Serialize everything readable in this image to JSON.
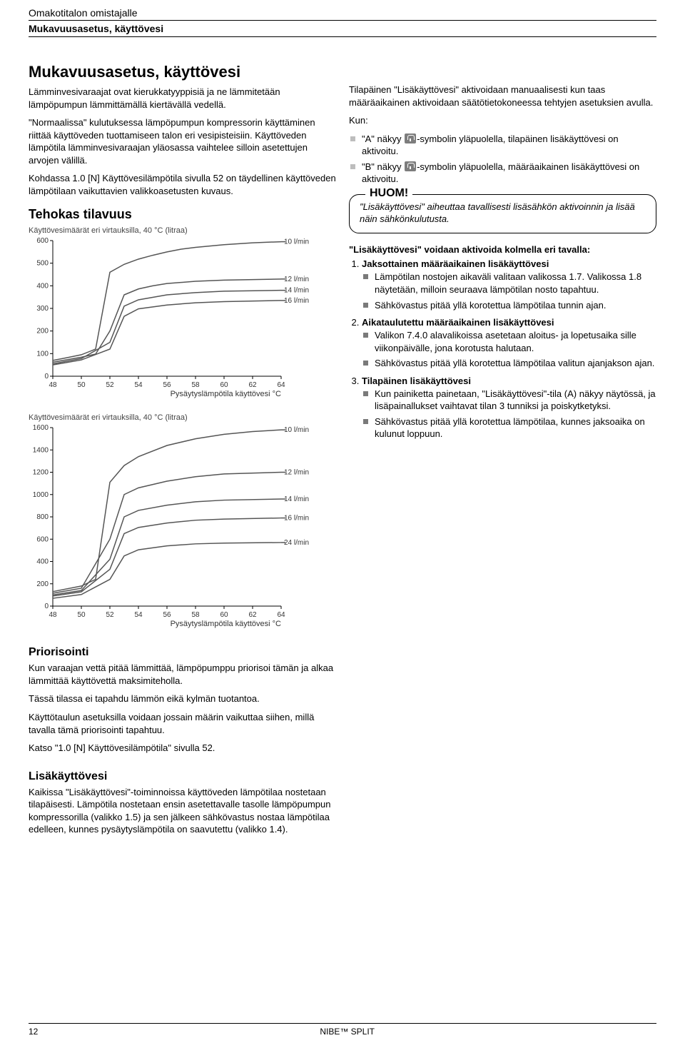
{
  "header": {
    "line1": "Omakotitalon omistajalle",
    "line2": "Mukavuusasetus, käyttövesi"
  },
  "left": {
    "title": "Mukavuusasetus, käyttövesi",
    "p1": "Lämminvesivaraajat ovat kierukkatyyppisiä ja ne lämmitetään lämpöpumpun lämmittämällä kiertävällä vedellä.",
    "p2": "\"Normaalissa\" kulutuksessa lämpöpumpun kompressorin käyttäminen riittää käyttöveden tuottamiseen talon eri vesipisteisiin. Käyttöveden lämpötila lämminvesivaraajan yläosassa vaihtelee silloin asetettujen arvojen välillä.",
    "p3": "Kohdassa 1.0 [N] Käyttövesilämpötila sivulla 52 on täydellinen käyttöveden lämpötilaan vaikuttavien valikkoasetusten kuvaus.",
    "h2": "Tehokas tilavuus",
    "chart1": {
      "caption": "Käyttövesimäärät eri virtauksilla, 40 °C (litraa)",
      "x_axis_label": "Pysäytyslämpötila käyttövesi °C",
      "x_ticks": [
        48,
        50,
        52,
        54,
        56,
        58,
        60,
        62,
        64
      ],
      "y_ticks": [
        0,
        100,
        200,
        300,
        400,
        500,
        600
      ],
      "xlim": [
        48,
        64
      ],
      "ylim": [
        0,
        600
      ],
      "series": [
        {
          "label": "10 l/min",
          "y_at_64": 595,
          "points": [
            [
              48,
              70
            ],
            [
              49,
              82
            ],
            [
              50,
              95
            ],
            [
              51,
              120
            ],
            [
              52,
              460
            ],
            [
              53,
              495
            ],
            [
              54,
              518
            ],
            [
              55,
              535
            ],
            [
              56,
              550
            ],
            [
              57,
              562
            ],
            [
              58,
              570
            ],
            [
              60,
              582
            ],
            [
              62,
              590
            ],
            [
              64,
              595
            ]
          ]
        },
        {
          "label": "12 l/min",
          "y_at_64": 430,
          "points": [
            [
              48,
              62
            ],
            [
              50,
              84
            ],
            [
              51,
              98
            ],
            [
              52,
              200
            ],
            [
              53,
              360
            ],
            [
              54,
              386
            ],
            [
              55,
              400
            ],
            [
              56,
              410
            ],
            [
              58,
              420
            ],
            [
              60,
              425
            ],
            [
              64,
              430
            ]
          ]
        },
        {
          "label": "14 l/min",
          "y_at_64": 380,
          "points": [
            [
              48,
              55
            ],
            [
              50,
              78
            ],
            [
              52,
              150
            ],
            [
              53,
              310
            ],
            [
              54,
              338
            ],
            [
              56,
              360
            ],
            [
              58,
              370
            ],
            [
              60,
              376
            ],
            [
              64,
              380
            ]
          ]
        },
        {
          "label": "16 l/min",
          "y_at_64": 335,
          "points": [
            [
              48,
              50
            ],
            [
              50,
              72
            ],
            [
              52,
              120
            ],
            [
              53,
              265
            ],
            [
              54,
              298
            ],
            [
              56,
              315
            ],
            [
              58,
              325
            ],
            [
              60,
              330
            ],
            [
              64,
              335
            ]
          ]
        }
      ],
      "colors": {
        "curve": "#555555",
        "axis": "#000000",
        "grid": "#e0e0e0"
      }
    },
    "chart2": {
      "caption": "Käyttövesimäärät eri virtauksilla, 40 °C (litraa)",
      "x_axis_label": "Pysäytyslämpötila käyttövesi °C",
      "x_ticks": [
        48,
        50,
        52,
        54,
        56,
        58,
        60,
        62,
        64
      ],
      "y_ticks": [
        0,
        200,
        400,
        600,
        800,
        1000,
        1200,
        1400,
        1600
      ],
      "xlim": [
        48,
        64
      ],
      "ylim": [
        0,
        1600
      ],
      "series": [
        {
          "label": "10 l/min",
          "y_at_64": 1580,
          "points": [
            [
              48,
              130
            ],
            [
              50,
              180
            ],
            [
              51,
              240
            ],
            [
              52,
              1110
            ],
            [
              53,
              1260
            ],
            [
              54,
              1340
            ],
            [
              56,
              1440
            ],
            [
              58,
              1500
            ],
            [
              60,
              1540
            ],
            [
              62,
              1565
            ],
            [
              64,
              1580
            ]
          ]
        },
        {
          "label": "12 l/min",
          "y_at_64": 1200,
          "points": [
            [
              48,
              115
            ],
            [
              50,
              160
            ],
            [
              52,
              600
            ],
            [
              53,
              1000
            ],
            [
              54,
              1060
            ],
            [
              56,
              1120
            ],
            [
              58,
              1160
            ],
            [
              60,
              1185
            ],
            [
              64,
              1200
            ]
          ]
        },
        {
          "label": "14 l/min",
          "y_at_64": 960,
          "points": [
            [
              48,
              100
            ],
            [
              50,
              140
            ],
            [
              52,
              420
            ],
            [
              53,
              800
            ],
            [
              54,
              858
            ],
            [
              56,
              905
            ],
            [
              58,
              935
            ],
            [
              60,
              950
            ],
            [
              64,
              960
            ]
          ]
        },
        {
          "label": "16 l/min",
          "y_at_64": 790,
          "points": [
            [
              48,
              90
            ],
            [
              50,
              128
            ],
            [
              52,
              330
            ],
            [
              53,
              650
            ],
            [
              54,
              705
            ],
            [
              56,
              745
            ],
            [
              58,
              770
            ],
            [
              60,
              780
            ],
            [
              64,
              790
            ]
          ]
        },
        {
          "label": "24 l/min",
          "y_at_64": 570,
          "points": [
            [
              48,
              70
            ],
            [
              50,
              104
            ],
            [
              52,
              240
            ],
            [
              53,
              450
            ],
            [
              54,
              505
            ],
            [
              56,
              540
            ],
            [
              58,
              558
            ],
            [
              60,
              565
            ],
            [
              64,
              570
            ]
          ]
        }
      ],
      "colors": {
        "curve": "#555555",
        "axis": "#000000",
        "grid": "#e0e0e0"
      }
    }
  },
  "right": {
    "p1": "Tilapäinen \"Lisäkäyttövesi\" aktivoidaan manuaalisesti kun taas määräaikainen aktivoidaan säätötietokoneessa tehtyjen asetuksien avulla.",
    "kun": "Kun:",
    "bul_a_pre": "\"A\" näkyy ",
    "bul_a_post": "-symbolin yläpuolella, tilapäinen lisäkäyttövesi on aktivoitu.",
    "bul_b_pre": "\"B\" näkyy ",
    "bul_b_post": "-symbolin yläpuolella, määräaikainen lisäkäyttövesi on aktivoitu.",
    "huom_title": "HUOM!",
    "huom_body": "\"Lisäkäyttövesi\" aiheuttaa tavallisesti lisäsähkön aktivoinnin ja lisää näin sähkönkulutusta.",
    "list_title": "\"Lisäkäyttövesi\" voidaan aktivoida kolmella eri tavalla:",
    "item1_title": "Jaksottainen määräaikainen lisäkäyttövesi",
    "item1_b1": "Lämpötilan nostojen aikaväli valitaan valikossa 1.7. Valikossa 1.8 näytetään, milloin seuraava lämpötilan nosto tapahtuu.",
    "item1_b2": "Sähkövastus pitää yllä korotettua lämpötilaa tunnin ajan.",
    "item2_title": "Aikataulutettu määräaikainen lisäkäyttövesi",
    "item2_b1": "Valikon 7.4.0 alavalikoissa asetetaan aloitus- ja lopetusaika sille viikonpäivälle, jona korotusta halutaan.",
    "item2_b2": "Sähkövastus pitää yllä korotettua lämpötilaa valitun ajanjakson ajan.",
    "item3_title": "Tilapäinen lisäkäyttövesi",
    "item3_b1": "Kun painiketta painetaan, \"Lisäkäyttövesi\"-tila (A) näkyy näytössä, ja lisäpainallukset vaihtavat tilan 3 tunniksi ja poiskytketyksi.",
    "item3_b2": "Sähkövastus pitää yllä korotettua lämpötilaa, kunnes jaksoaika on kulunut loppuun."
  },
  "bottom": {
    "h_prior": "Priorisointi",
    "prior_p1": "Kun varaajan vettä pitää lämmittää, lämpöpumppu priorisoi tämän ja alkaa lämmittää käyttövettä maksimiteholla.",
    "prior_p2": "Tässä tilassa ei tapahdu lämmön eikä kylmän tuotantoa.",
    "prior_p3": "Käyttötaulun asetuksilla voidaan jossain määrin vaikuttaa siihen, millä tavalla tämä priorisointi tapahtuu.",
    "prior_p4": "Katso \"1.0 [N] Käyttövesilämpötila\" sivulla 52.",
    "h_lisa": "Lisäkäyttövesi",
    "lisa_p1": "Kaikissa \"Lisäkäyttövesi\"-toiminnoissa käyttöveden lämpötilaa nostetaan tilapäisesti. Lämpötila nostetaan ensin asetettavalle tasolle lämpöpumpun kompressorilla (valikko 1.5) ja sen jälkeen sähkövastus nostaa lämpötilaa edelleen, kunnes pysäytyslämpötila on saavutettu (valikko 1.4)."
  },
  "footer": {
    "page": "12",
    "product": "NIBE™ SPLIT"
  }
}
